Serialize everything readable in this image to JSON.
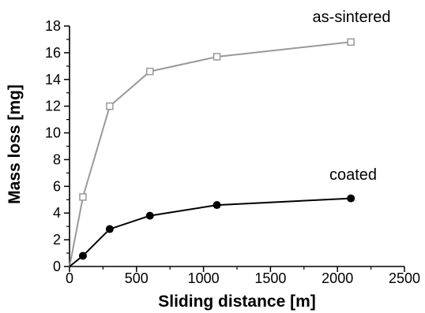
{
  "chart_data": {
    "type": "line",
    "title": "",
    "xlabel": "Sliding distance [m]",
    "ylabel": "Mass loss [mg]",
    "xlim": [
      0,
      2500
    ],
    "ylim": [
      0,
      18
    ],
    "x_ticks": [
      0,
      500,
      1000,
      1500,
      2000,
      2500
    ],
    "y_ticks": [
      0,
      2,
      4,
      6,
      8,
      10,
      12,
      14,
      16,
      18
    ],
    "grid": false,
    "series": [
      {
        "name": "as-sintered",
        "marker": "open-square",
        "color": "#999999",
        "x": [
          0,
          100,
          300,
          600,
          1100,
          2100
        ],
        "y": [
          0,
          5.2,
          12.0,
          14.6,
          15.7,
          16.8
        ]
      },
      {
        "name": "coated",
        "marker": "filled-circle",
        "color": "#000000",
        "x": [
          0,
          100,
          300,
          600,
          1100,
          2100
        ],
        "y": [
          0,
          0.8,
          2.8,
          3.8,
          4.6,
          5.1
        ]
      }
    ]
  }
}
